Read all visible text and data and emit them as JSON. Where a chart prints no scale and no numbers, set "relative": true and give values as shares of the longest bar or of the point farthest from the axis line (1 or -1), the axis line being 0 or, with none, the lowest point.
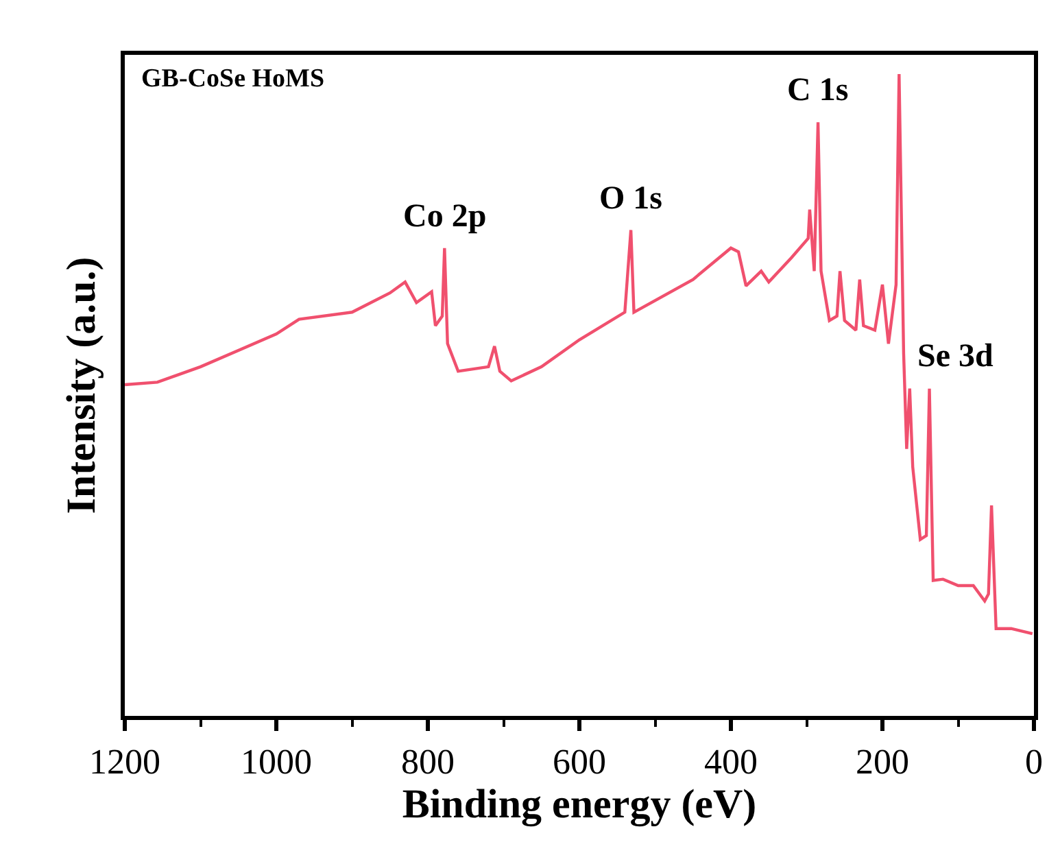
{
  "chart_data": {
    "type": "line",
    "title": "GB-CoSe HoMS",
    "xlabel": "Binding energy (eV)",
    "ylabel": "Intensity (a.u.)",
    "relative": true,
    "xlim": [
      1200,
      0
    ],
    "xticks": [
      1200,
      1000,
      800,
      600,
      400,
      200,
      0
    ],
    "marker": "none",
    "line_style": "solid",
    "x": [
      1200,
      1157,
      1100,
      1000,
      970,
      900,
      850,
      830,
      815,
      795,
      790,
      781,
      778,
      774,
      760,
      720,
      712,
      705,
      690,
      650,
      600,
      540,
      532,
      528,
      450,
      400,
      390,
      380,
      360,
      350,
      320,
      298,
      296,
      290,
      285,
      281,
      270,
      260,
      256,
      250,
      235,
      230,
      225,
      210,
      200,
      192,
      182,
      178,
      172,
      168,
      164,
      160,
      150,
      142,
      138,
      133,
      120,
      100,
      80,
      65,
      60,
      56,
      50,
      30,
      2
    ],
    "series": [
      {
        "color": "#f0506e",
        "values": [
          0.516,
          0.52,
          0.544,
          0.595,
          0.618,
          0.629,
          0.659,
          0.676,
          0.644,
          0.661,
          0.608,
          0.623,
          0.729,
          0.58,
          0.537,
          0.544,
          0.576,
          0.537,
          0.522,
          0.544,
          0.586,
          0.629,
          0.757,
          0.629,
          0.68,
          0.729,
          0.723,
          0.67,
          0.693,
          0.676,
          0.714,
          0.744,
          0.789,
          0.693,
          0.925,
          0.693,
          0.616,
          0.623,
          0.693,
          0.616,
          0.601,
          0.68,
          0.608,
          0.601,
          0.672,
          0.58,
          0.672,
          1.0,
          0.565,
          0.416,
          0.51,
          0.388,
          0.275,
          0.281,
          0.51,
          0.211,
          0.213,
          0.203,
          0.203,
          0.179,
          0.19,
          0.328,
          0.136,
          0.136,
          0.128
        ]
      }
    ],
    "annotations": [
      {
        "text": "Co 2p",
        "x": 778,
        "y": 0.729
      },
      {
        "text": "O 1s",
        "x": 532,
        "y": 0.757
      },
      {
        "text": "C 1s",
        "x": 285,
        "y": 0.925
      },
      {
        "text": "Se 3d",
        "x": 164,
        "y": 0.51
      }
    ]
  }
}
